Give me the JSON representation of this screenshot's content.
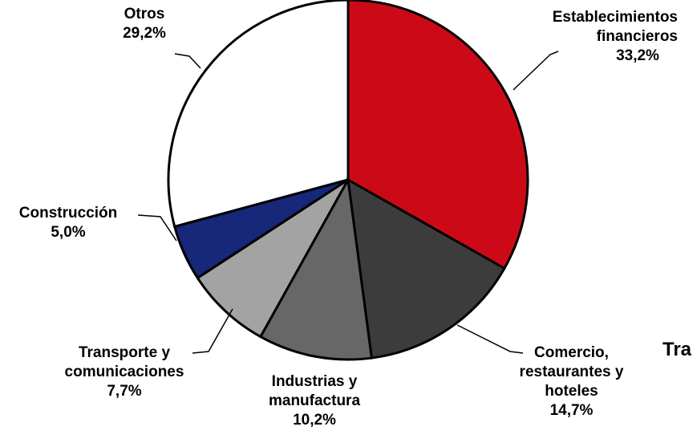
{
  "chart_data": {
    "type": "pie",
    "categories": [
      "Establecimientos financieros",
      "Comercio, restaurantes y hoteles",
      "Industrias y manufactura",
      "Transporte y comunicaciones",
      "Construcción",
      "Otros"
    ],
    "values": [
      33.2,
      14.7,
      10.2,
      7.7,
      5.0,
      29.2
    ],
    "value_labels": [
      "33,2%",
      "14,7%",
      "10,2%",
      "7,7%",
      "5,0%",
      "29,2%"
    ],
    "colors": [
      "#cc0a17",
      "#3c3c3c",
      "#676767",
      "#a3a3a3",
      "#172779",
      "#ffffff"
    ],
    "annotations": [
      "Tra"
    ]
  }
}
